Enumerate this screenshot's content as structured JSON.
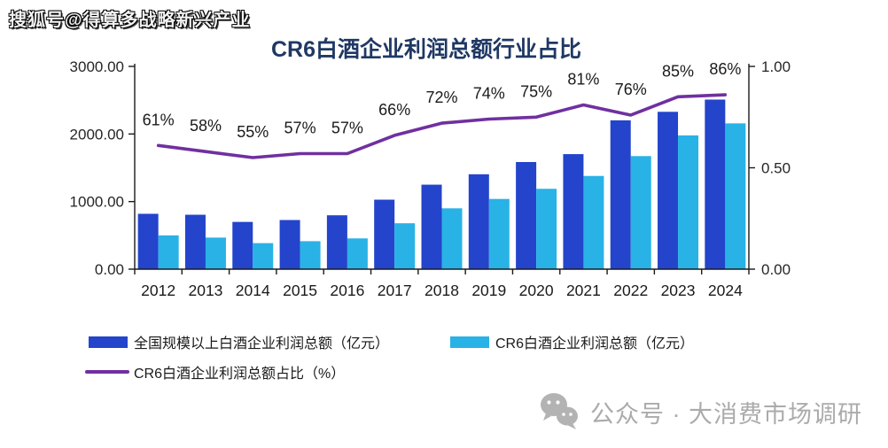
{
  "watermarks": {
    "top_left": "搜狐号@得算多战略新兴产业",
    "bottom_right": "公众号 · 大消费市场调研",
    "bottom_icon": "wechat-icon",
    "gray": "#ababab"
  },
  "chart_data": {
    "type": "bar",
    "title": "CR6白酒企业利润总额行业占比",
    "title_color": "#1f3864",
    "categories": [
      "2012",
      "2013",
      "2014",
      "2015",
      "2016",
      "2017",
      "2018",
      "2019",
      "2020",
      "2021",
      "2022",
      "2023",
      "2024"
    ],
    "series": [
      {
        "name": "全国规模以上白酒企业利润总额（亿元）",
        "type": "bar",
        "axis": "left",
        "color": "#2344cb",
        "values": [
          819,
          805,
          699,
          727,
          797,
          1028,
          1250,
          1404,
          1585,
          1702,
          2202,
          2328,
          2509
        ]
      },
      {
        "name": "CR6白酒企业利润总额（亿元）",
        "type": "bar",
        "axis": "left",
        "color": "#29b2e6",
        "values": [
          500,
          467,
          385,
          414,
          455,
          679,
          900,
          1039,
          1189,
          1379,
          1673,
          1979,
          2157
        ]
      },
      {
        "name": "CR6白酒企业利润总额占比（%）",
        "type": "line",
        "axis": "right",
        "color": "#7030a0",
        "values": [
          0.61,
          0.58,
          0.55,
          0.57,
          0.57,
          0.66,
          0.72,
          0.74,
          0.75,
          0.81,
          0.76,
          0.85,
          0.86
        ],
        "point_labels": [
          "61%",
          "58%",
          "55%",
          "57%",
          "57%",
          "66%",
          "72%",
          "74%",
          "75%",
          "81%",
          "76%",
          "85%",
          "86%"
        ]
      }
    ],
    "left_axis": {
      "min": 0,
      "max": 3000,
      "tick_labels": [
        "3000.00",
        "2000.00",
        "1000.00",
        "0.00"
      ]
    },
    "right_axis": {
      "min": 0,
      "max": 1,
      "tick_labels": [
        "1.00",
        "0.50",
        "0.00"
      ]
    },
    "grid": false,
    "legend_position": "bottom-left",
    "text_color": "#262626"
  }
}
